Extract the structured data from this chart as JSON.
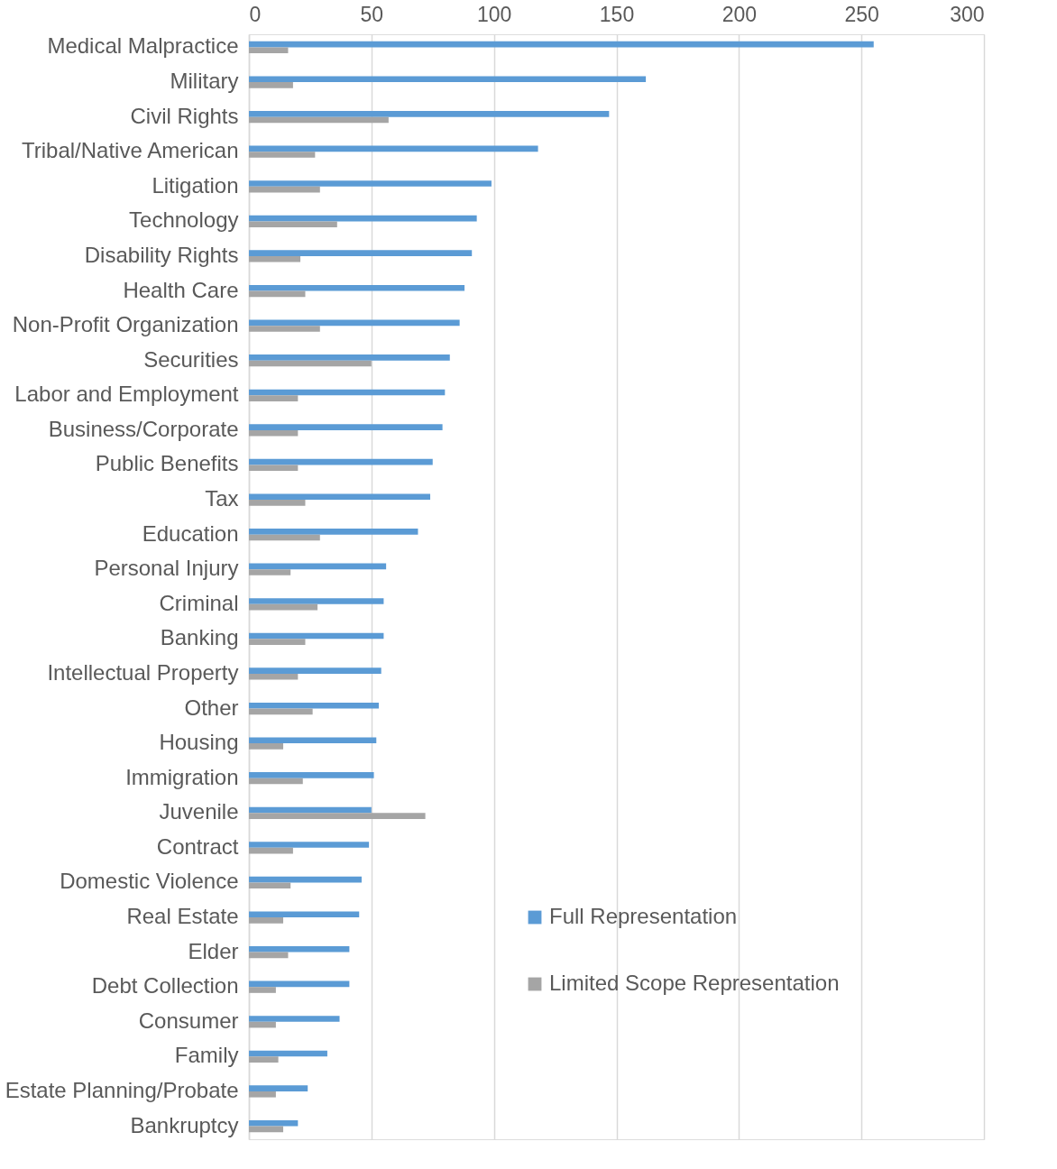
{
  "chart_data": {
    "type": "bar",
    "orientation": "horizontal",
    "categories": [
      "Medical Malpractice",
      "Military",
      "Civil Rights",
      "Tribal/Native American",
      "Litigation",
      "Technology",
      "Disability Rights",
      "Health Care",
      "Non-Profit Organization",
      "Securities",
      "Labor and Employment",
      "Business/Corporate",
      "Public Benefits",
      "Tax",
      "Education",
      "Personal Injury",
      "Criminal",
      "Banking",
      "Intellectual Property",
      "Other",
      "Housing",
      "Immigration",
      "Juvenile",
      "Contract",
      "Domestic Violence",
      "Real Estate",
      "Elder",
      "Debt Collection",
      "Consumer",
      "Family",
      "Estate Planning/Probate",
      "Bankruptcy"
    ],
    "series": [
      {
        "name": "Full Representation",
        "color": "#5b9bd5",
        "values": [
          255,
          162,
          147,
          118,
          99,
          93,
          91,
          88,
          86,
          82,
          80,
          79,
          75,
          74,
          69,
          56,
          55,
          55,
          54,
          53,
          52,
          51,
          50,
          49,
          46,
          45,
          41,
          41,
          37,
          32,
          24,
          20
        ]
      },
      {
        "name": "Limited Scope Representation",
        "color": "#a5a5a5",
        "values": [
          16,
          18,
          57,
          27,
          29,
          36,
          21,
          23,
          29,
          50,
          20,
          20,
          20,
          23,
          29,
          17,
          28,
          23,
          20,
          26,
          14,
          22,
          72,
          18,
          17,
          14,
          16,
          11,
          11,
          12,
          11,
          14
        ]
      }
    ],
    "xlim": [
      0,
      300
    ],
    "xticks": [
      0,
      50,
      100,
      150,
      200,
      250,
      300
    ],
    "grid": "x",
    "legend": "bottom right"
  }
}
